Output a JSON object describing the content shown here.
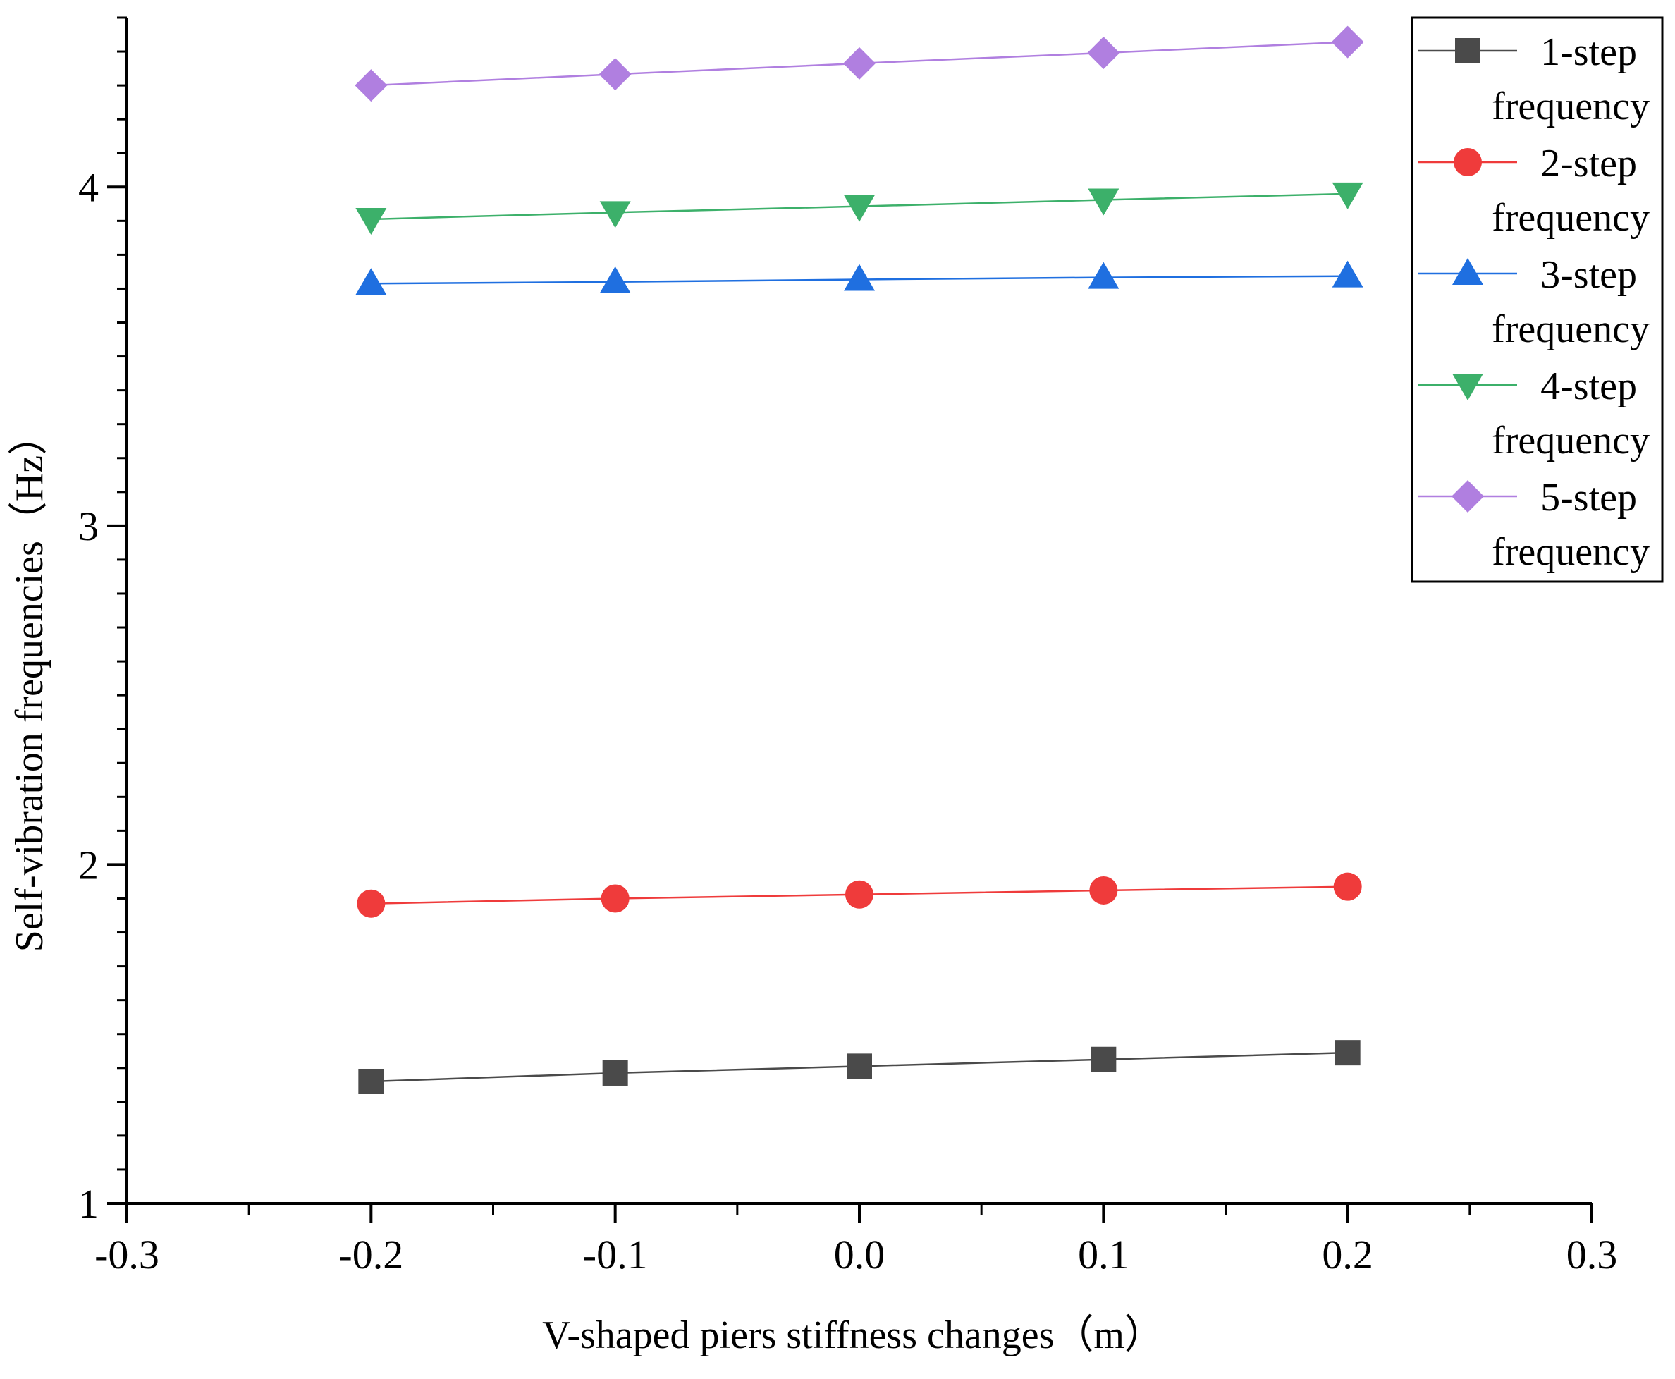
{
  "chart_data": {
    "type": "line",
    "title": "",
    "xlabel": "V-shaped piers stiffness changes（m）",
    "ylabel": "Self-vibration frequencies（Hz）",
    "xlim": [
      -0.3,
      0.3
    ],
    "ylim": [
      1,
      4.5
    ],
    "x_tick_labels": [
      "-0.3",
      "-0.2",
      "-0.1",
      "0.0",
      "0.1",
      "0.2",
      "0.3"
    ],
    "x_tick_values": [
      -0.3,
      -0.2,
      -0.1,
      0.0,
      0.1,
      0.2,
      0.3
    ],
    "y_tick_labels": [
      "1",
      "2",
      "3",
      "4"
    ],
    "y_tick_values": [
      1,
      2,
      3,
      4
    ],
    "grid": false,
    "legend_position": "top-right",
    "x": [
      -0.2,
      -0.1,
      0.0,
      0.1,
      0.2
    ],
    "series": [
      {
        "name": "1-step frequency",
        "legend_lines": [
          "1-step",
          "frequency"
        ],
        "values": [
          1.36,
          1.385,
          1.405,
          1.425,
          1.445
        ],
        "color": "#4a4a4a",
        "marker": "square"
      },
      {
        "name": "2-step frequency",
        "legend_lines": [
          "2-step",
          "frequency"
        ],
        "values": [
          1.885,
          1.9,
          1.912,
          1.924,
          1.935
        ],
        "color": "#ef3b3b",
        "marker": "circle"
      },
      {
        "name": "3-step frequency",
        "legend_lines": [
          "3-step",
          "frequency"
        ],
        "values": [
          3.715,
          3.72,
          3.727,
          3.733,
          3.737
        ],
        "color": "#1f6fe0",
        "marker": "triangle-up"
      },
      {
        "name": "4-step frequency",
        "legend_lines": [
          "4-step",
          "frequency"
        ],
        "values": [
          3.905,
          3.925,
          3.943,
          3.962,
          3.98
        ],
        "color": "#3cb06a",
        "marker": "triangle-down"
      },
      {
        "name": "5-step frequency",
        "legend_lines": [
          "5-step",
          "frequency"
        ],
        "values": [
          4.3,
          4.333,
          4.365,
          4.396,
          4.428
        ],
        "color": "#b07fe0",
        "marker": "diamond"
      }
    ]
  }
}
